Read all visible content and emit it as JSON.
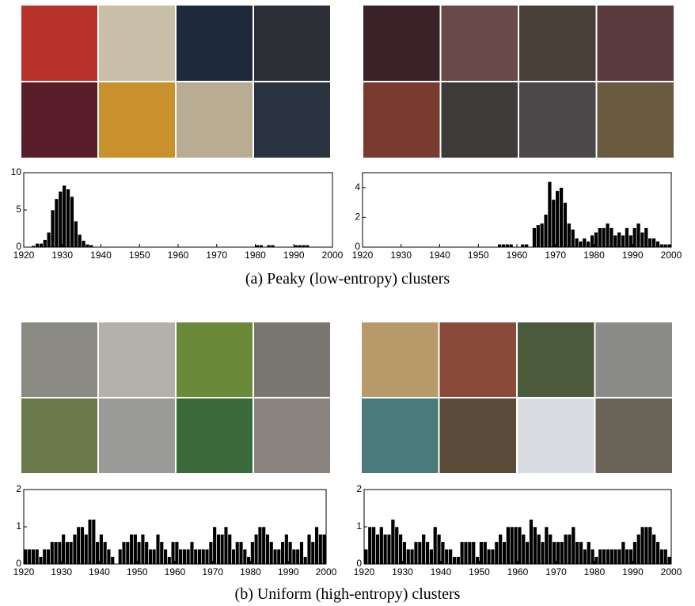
{
  "captions": [
    "(a) Peaky (low-entropy) clusters",
    "(b) Uniform (high-entropy) clusters"
  ],
  "chart_data": [
    {
      "type": "histogram",
      "color": "#000000",
      "bins": [
        1920,
        1921,
        1922,
        1923,
        1924,
        1925,
        1926,
        1927,
        1928,
        1929,
        1930,
        1931,
        1932,
        1933,
        1934,
        1935,
        1936,
        1937,
        1938,
        1939,
        1940,
        1941,
        1942,
        1943,
        1944,
        1945,
        1946,
        1947,
        1948,
        1949,
        1950,
        1951,
        1952,
        1953,
        1954,
        1955,
        1956,
        1957,
        1958,
        1959,
        1960,
        1961,
        1962,
        1963,
        1964,
        1965,
        1966,
        1967,
        1968,
        1969,
        1970,
        1971,
        1972,
        1973,
        1974,
        1975,
        1976,
        1977,
        1978,
        1979,
        1980,
        1981,
        1982,
        1983,
        1984,
        1985,
        1986,
        1987,
        1988,
        1989,
        1990,
        1991,
        1992,
        1993,
        1994,
        1995,
        1996,
        1997,
        1998,
        1999,
        2000
      ],
      "values": [
        0,
        0,
        0.2,
        0.5,
        0.5,
        1,
        2,
        5,
        6.5,
        7.5,
        8.3,
        7.8,
        6.8,
        3.5,
        1.7,
        0.9,
        0.4,
        0.3,
        0,
        0,
        0,
        0,
        0,
        0,
        0,
        0,
        0,
        0,
        0,
        0,
        0,
        0,
        0,
        0,
        0,
        0,
        0,
        0,
        0,
        0,
        0,
        0,
        0,
        0,
        0,
        0,
        0,
        0,
        0,
        0,
        0,
        0,
        0,
        0,
        0,
        0,
        0,
        0,
        0,
        0,
        0.3,
        0.3,
        0,
        0.3,
        0.3,
        0,
        0,
        0,
        0,
        0,
        0.3,
        0.3,
        0.3,
        0.3,
        0,
        0,
        0,
        0,
        0,
        0
      ],
      "xlim": [
        1920,
        2000
      ],
      "xticks": [
        1920,
        1930,
        1940,
        1950,
        1960,
        1970,
        1980,
        1990,
        2000
      ],
      "ylim": [
        0,
        10
      ],
      "yticks": [
        0,
        5,
        10
      ]
    },
    {
      "type": "histogram",
      "color": "#000000",
      "bins": [
        1920,
        1921,
        1922,
        1923,
        1924,
        1925,
        1926,
        1927,
        1928,
        1929,
        1930,
        1931,
        1932,
        1933,
        1934,
        1935,
        1936,
        1937,
        1938,
        1939,
        1940,
        1941,
        1942,
        1943,
        1944,
        1945,
        1946,
        1947,
        1948,
        1949,
        1950,
        1951,
        1952,
        1953,
        1954,
        1955,
        1956,
        1957,
        1958,
        1959,
        1960,
        1961,
        1962,
        1963,
        1964,
        1965,
        1966,
        1967,
        1968,
        1969,
        1970,
        1971,
        1972,
        1973,
        1974,
        1975,
        1976,
        1977,
        1978,
        1979,
        1980,
        1981,
        1982,
        1983,
        1984,
        1985,
        1986,
        1987,
        1988,
        1989,
        1990,
        1991,
        1992,
        1993,
        1994,
        1995,
        1996,
        1997,
        1998,
        1999,
        2000
      ],
      "values": [
        0,
        0,
        0,
        0,
        0,
        0,
        0,
        0,
        0,
        0,
        0,
        0,
        0,
        0,
        0,
        0,
        0,
        0,
        0,
        0,
        0,
        0,
        0,
        0,
        0,
        0,
        0,
        0,
        0,
        0,
        0,
        0,
        0,
        0,
        0,
        0.2,
        0.2,
        0.2,
        0.2,
        0,
        0,
        0.2,
        0.2,
        0,
        1.3,
        1.5,
        1.6,
        2.2,
        4.4,
        3.2,
        3.8,
        4,
        3,
        1.6,
        1.2,
        0.6,
        0.4,
        0.6,
        0.4,
        0.8,
        1,
        1.3,
        1.3,
        1.6,
        1.3,
        0.8,
        1,
        0.8,
        1.3,
        0.8,
        1.3,
        1.6,
        1,
        1.3,
        0.6,
        0.6,
        0.4,
        0.2,
        0.2,
        0.2
      ],
      "xlim": [
        1920,
        2000
      ],
      "xticks": [
        1920,
        1930,
        1940,
        1950,
        1960,
        1970,
        1980,
        1990,
        2000
      ],
      "ylim": [
        0,
        5
      ],
      "yticks": [
        0,
        2,
        4
      ]
    },
    {
      "type": "histogram",
      "color": "#000000",
      "bins": [
        1920,
        1921,
        1922,
        1923,
        1924,
        1925,
        1926,
        1927,
        1928,
        1929,
        1930,
        1931,
        1932,
        1933,
        1934,
        1935,
        1936,
        1937,
        1938,
        1939,
        1940,
        1941,
        1942,
        1943,
        1944,
        1945,
        1946,
        1947,
        1948,
        1949,
        1950,
        1951,
        1952,
        1953,
        1954,
        1955,
        1956,
        1957,
        1958,
        1959,
        1960,
        1961,
        1962,
        1963,
        1964,
        1965,
        1966,
        1967,
        1968,
        1969,
        1970,
        1971,
        1972,
        1973,
        1974,
        1975,
        1976,
        1977,
        1978,
        1979,
        1980,
        1981,
        1982,
        1983,
        1984,
        1985,
        1986,
        1987,
        1988,
        1989,
        1990,
        1991,
        1992,
        1993,
        1994,
        1995,
        1996,
        1997,
        1998,
        1999,
        2000
      ],
      "values": [
        0.4,
        0.4,
        0.4,
        0.4,
        0.2,
        0.4,
        0.4,
        0.6,
        0.6,
        0.6,
        0.8,
        0.6,
        0.6,
        0.8,
        1,
        1,
        0.8,
        1.2,
        1.2,
        0.6,
        0.8,
        0.6,
        0.4,
        0.2,
        0,
        0.4,
        0.6,
        0.6,
        0.8,
        0.8,
        0.6,
        0.8,
        0.6,
        0.4,
        0.4,
        0.8,
        0.6,
        0.4,
        0.2,
        0.6,
        0.6,
        0.4,
        0.4,
        0.4,
        0.6,
        0.4,
        0.4,
        0.4,
        0.4,
        0.6,
        1,
        0.8,
        0.8,
        1,
        0.8,
        0.4,
        0.6,
        0.6,
        0.4,
        0.2,
        0.6,
        0.8,
        1,
        1,
        0.8,
        0.6,
        0.4,
        0.4,
        0.6,
        0.8,
        0.6,
        0.4,
        0.4,
        0.6,
        0.2,
        0.8,
        0.6,
        1,
        0.8,
        0.8
      ],
      "xlim": [
        1920,
        2000
      ],
      "xticks": [
        1920,
        1930,
        1940,
        1950,
        1960,
        1970,
        1980,
        1990,
        2000
      ],
      "ylim": [
        0,
        2
      ],
      "yticks": [
        0,
        1,
        2
      ]
    },
    {
      "type": "histogram",
      "color": "#000000",
      "bins": [
        1920,
        1921,
        1922,
        1923,
        1924,
        1925,
        1926,
        1927,
        1928,
        1929,
        1930,
        1931,
        1932,
        1933,
        1934,
        1935,
        1936,
        1937,
        1938,
        1939,
        1940,
        1941,
        1942,
        1943,
        1944,
        1945,
        1946,
        1947,
        1948,
        1949,
        1950,
        1951,
        1952,
        1953,
        1954,
        1955,
        1956,
        1957,
        1958,
        1959,
        1960,
        1961,
        1962,
        1963,
        1964,
        1965,
        1966,
        1967,
        1968,
        1969,
        1970,
        1971,
        1972,
        1973,
        1974,
        1975,
        1976,
        1977,
        1978,
        1979,
        1980,
        1981,
        1982,
        1983,
        1984,
        1985,
        1986,
        1987,
        1988,
        1989,
        1990,
        1991,
        1992,
        1993,
        1994,
        1995,
        1996,
        1997,
        1998,
        1999,
        2000
      ],
      "values": [
        0.4,
        1,
        1,
        0.8,
        1,
        0.8,
        0.8,
        1.2,
        1,
        0.8,
        0.6,
        0.4,
        0.4,
        0.6,
        0.6,
        0.8,
        0.6,
        0.4,
        1,
        0.8,
        0.6,
        0.4,
        0.4,
        0.2,
        0.2,
        0.6,
        0.6,
        0.6,
        0.6,
        0.2,
        0.6,
        0.6,
        0.4,
        0.4,
        0.6,
        0.8,
        0.6,
        1,
        1,
        1,
        1,
        0.8,
        0.6,
        1.2,
        1,
        0.8,
        0.6,
        1,
        0.8,
        0.6,
        0.6,
        0.6,
        0.8,
        0.8,
        1,
        0.6,
        0.6,
        0.4,
        0.6,
        0.4,
        0.2,
        0.4,
        0.4,
        0.4,
        0.4,
        0.4,
        0.4,
        0.6,
        0.4,
        0.4,
        0.6,
        0.8,
        1,
        1,
        1,
        0.8,
        0.6,
        0.4,
        0.4,
        0.2
      ],
      "xlim": [
        1920,
        2000
      ],
      "xticks": [
        1920,
        1930,
        1940,
        1950,
        1960,
        1970,
        1980,
        1990,
        2000
      ],
      "ylim": [
        0,
        2
      ],
      "yticks": [
        0,
        1,
        2
      ]
    }
  ]
}
